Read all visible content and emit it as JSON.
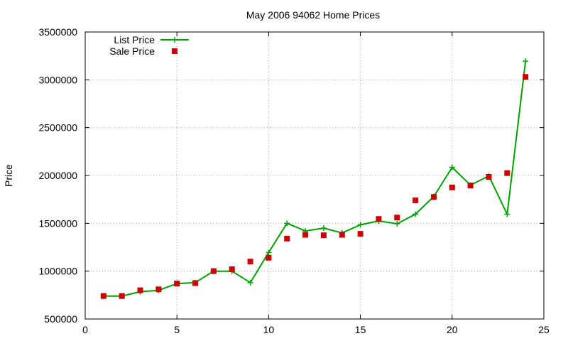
{
  "chart_data": {
    "type": "line",
    "title": "May 2006 94062 Home Prices",
    "xlabel": "",
    "ylabel": "Price",
    "xlim": [
      0,
      25
    ],
    "ylim": [
      500000,
      3500000
    ],
    "x_ticks": [
      "0",
      "5",
      "10",
      "15",
      "20",
      "25"
    ],
    "y_ticks": [
      "500000",
      "1000000",
      "1500000",
      "2000000",
      "2500000",
      "3000000",
      "3500000"
    ],
    "grid": true,
    "legend_position": "top-left",
    "series": [
      {
        "name": "List Price",
        "style": "line-with-plus-markers",
        "color": "#00a000",
        "x": [
          1,
          2,
          3,
          4,
          5,
          6,
          7,
          8,
          9,
          10,
          11,
          12,
          13,
          14,
          15,
          16,
          17,
          18,
          19,
          20,
          21,
          22,
          23,
          24
        ],
        "y": [
          740000,
          740000,
          785000,
          800000,
          870000,
          880000,
          1000000,
          1000000,
          880000,
          1195000,
          1500000,
          1420000,
          1450000,
          1400000,
          1485000,
          1525000,
          1495000,
          1595000,
          1780000,
          2085000,
          1900000,
          1995000,
          1595000,
          3195000
        ]
      },
      {
        "name": "Sale Price",
        "style": "square-markers",
        "color": "#cc0000",
        "x": [
          1,
          2,
          3,
          4,
          5,
          6,
          7,
          8,
          9,
          10,
          11,
          12,
          13,
          14,
          15,
          16,
          17,
          18,
          19,
          20,
          21,
          22,
          23,
          24
        ],
        "y": [
          740000,
          740000,
          800000,
          810000,
          870000,
          875000,
          1000000,
          1020000,
          1100000,
          1140000,
          1340000,
          1380000,
          1375000,
          1380000,
          1390000,
          1545000,
          1560000,
          1740000,
          1775000,
          1875000,
          1895000,
          1985000,
          2025000,
          3030000
        ]
      }
    ]
  }
}
